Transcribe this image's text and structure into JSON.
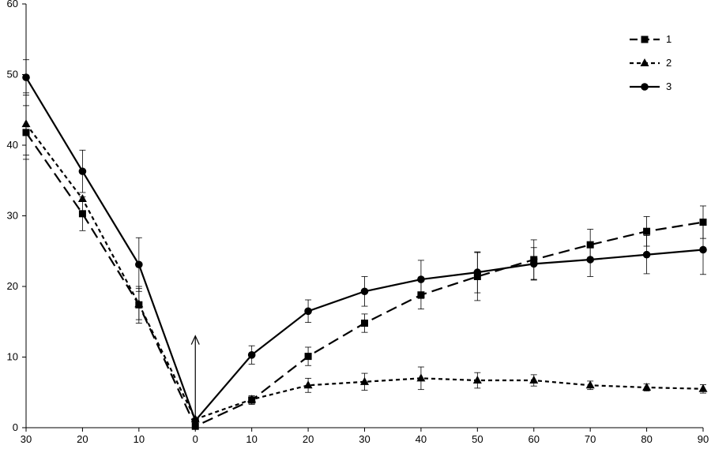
{
  "chart_data": {
    "type": "line",
    "title": "",
    "xlabel": "",
    "ylabel": "",
    "x_tick_labels": [
      "30",
      "20",
      "10",
      "0",
      "10",
      "20",
      "30",
      "40",
      "50",
      "60",
      "70",
      "80",
      "90"
    ],
    "y_ticks": [
      0,
      10,
      20,
      30,
      40,
      50,
      60
    ],
    "ylim": [
      0,
      60
    ],
    "grid": false,
    "legend_position": "top-right",
    "series": [
      {
        "name": "1",
        "marker": "square",
        "line_style": "long-dash",
        "points": [
          {
            "x": "30",
            "y": 41.8,
            "err": 3.8
          },
          {
            "x": "20",
            "y": 30.3,
            "err": 2.4
          },
          {
            "x": "10",
            "y": 17.4,
            "err": 2.6
          },
          {
            "x": "0",
            "y": 0.2,
            "err": 0
          },
          {
            "x": "10",
            "y": 3.9,
            "err": 0.6
          },
          {
            "x": "20",
            "y": 10.1,
            "err": 1.3
          },
          {
            "x": "30",
            "y": 14.8,
            "err": 1.3
          },
          {
            "x": "40",
            "y": 18.8,
            "err": 2.0
          },
          {
            "x": "50",
            "y": 21.4,
            "err": 3.4
          },
          {
            "x": "60",
            "y": 23.8,
            "err": 2.8
          },
          {
            "x": "70",
            "y": 25.9,
            "err": 2.2
          },
          {
            "x": "80",
            "y": 27.8,
            "err": 2.1
          },
          {
            "x": "90",
            "y": 29.1,
            "err": 2.3
          }
        ]
      },
      {
        "name": "2",
        "marker": "triangle",
        "line_style": "short-dash",
        "points": [
          {
            "x": "30",
            "y": 43.0,
            "err": 4.4
          },
          {
            "x": "20",
            "y": 32.4,
            "err": 0
          },
          {
            "x": "10",
            "y": 17.5,
            "err": 2.2
          },
          {
            "x": "0",
            "y": 1.2,
            "err": 0
          },
          {
            "x": "10",
            "y": 4.0,
            "err": 0.5
          },
          {
            "x": "20",
            "y": 6.0,
            "err": 1.0
          },
          {
            "x": "30",
            "y": 6.5,
            "err": 1.2
          },
          {
            "x": "40",
            "y": 7.0,
            "err": 1.6
          },
          {
            "x": "50",
            "y": 6.7,
            "err": 1.1
          },
          {
            "x": "60",
            "y": 6.7,
            "err": 0.8
          },
          {
            "x": "70",
            "y": 6.0,
            "err": 0.6
          },
          {
            "x": "80",
            "y": 5.7,
            "err": 0.5
          },
          {
            "x": "90",
            "y": 5.5,
            "err": 0.6
          }
        ]
      },
      {
        "name": "3",
        "marker": "circle",
        "line_style": "solid",
        "points": [
          {
            "x": "30",
            "y": 49.6,
            "err": 2.5
          },
          {
            "x": "20",
            "y": 36.3,
            "err": 3.0
          },
          {
            "x": "10",
            "y": 23.1,
            "err": 3.8
          },
          {
            "x": "0",
            "y": 1.0,
            "err": 0
          },
          {
            "x": "10",
            "y": 10.3,
            "err": 1.3
          },
          {
            "x": "20",
            "y": 16.5,
            "err": 1.6
          },
          {
            "x": "30",
            "y": 19.3,
            "err": 2.1
          },
          {
            "x": "40",
            "y": 21.0,
            "err": 2.7
          },
          {
            "x": "50",
            "y": 22.0,
            "err": 2.9
          },
          {
            "x": "60",
            "y": 23.2,
            "err": 2.3
          },
          {
            "x": "70",
            "y": 23.8,
            "err": 2.4
          },
          {
            "x": "80",
            "y": 24.5,
            "err": 2.7
          },
          {
            "x": "90",
            "y": 25.2,
            "err": 3.5
          }
        ]
      }
    ],
    "annotations": [
      {
        "type": "arrow",
        "direction": "up",
        "at_x_index": 3,
        "from_y": 0,
        "to_y": 13
      }
    ]
  }
}
